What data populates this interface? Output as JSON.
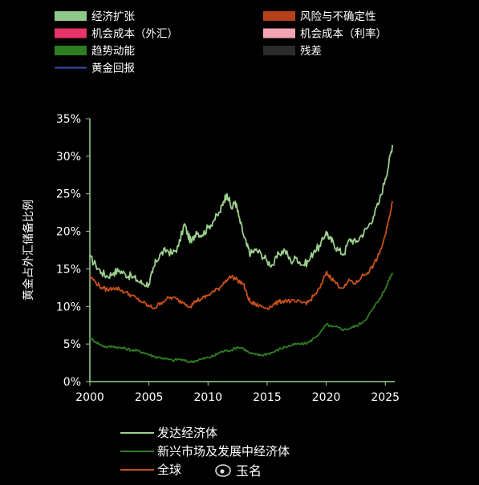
{
  "top_legend": [
    {
      "label": "经济扩张",
      "color": "#8fc98a"
    },
    {
      "label": "风险与不确定性",
      "color": "#b5401a"
    },
    {
      "label": "机会成本（外汇）",
      "color": "#e8346a"
    },
    {
      "label": "机会成本（利率）",
      "color": "#f3a3b3"
    },
    {
      "label": "趋势动能",
      "color": "#2f7d22"
    },
    {
      "label": "残差",
      "color": "#2b2b2b"
    },
    {
      "label": "黄金回报",
      "color": "#3b4fb0"
    }
  ],
  "watermark": "玉名",
  "chart_data": {
    "type": "line",
    "title": "",
    "xlabel": "",
    "ylabel": "黄金占外汇储备比例",
    "xlim": [
      2000,
      2025.8
    ],
    "ylim": [
      0,
      35
    ],
    "x_ticks": [
      "2000",
      "2005",
      "2010",
      "2015",
      "2020",
      "2025"
    ],
    "y_ticks": [
      "0%",
      "5%",
      "10%",
      "15%",
      "20%",
      "25%",
      "30%",
      "35%"
    ],
    "grid": false,
    "legend_position": "bottom-left",
    "series": [
      {
        "name": "发达经济体",
        "color": "#9dd08f",
        "x": [
          2000,
          2000.5,
          2001,
          2001.5,
          2002,
          2002.5,
          2003,
          2003.5,
          2004,
          2004.5,
          2005,
          2005.3,
          2005.6,
          2006,
          2006.5,
          2007,
          2007.5,
          2008,
          2008.3,
          2008.6,
          2009,
          2009.5,
          2010,
          2010.5,
          2011,
          2011.3,
          2011.6,
          2012,
          2012.3,
          2012.6,
          2013,
          2013.3,
          2013.6,
          2014,
          2014.5,
          2015,
          2015.5,
          2016,
          2016.5,
          2017,
          2017.5,
          2018,
          2018.5,
          2019,
          2019.5,
          2020,
          2020.3,
          2020.6,
          2021,
          2021.5,
          2022,
          2022.5,
          2023,
          2023.5,
          2024,
          2024.5,
          2025,
          2025.3,
          2025.6
        ],
        "values": [
          16.5,
          15.5,
          14.5,
          14.0,
          14.5,
          14.8,
          14.3,
          14.0,
          13.5,
          13.0,
          13.0,
          14.5,
          16.0,
          17.0,
          17.5,
          17.0,
          18.0,
          21.0,
          19.5,
          18.5,
          20.0,
          19.5,
          20.5,
          21.5,
          22.5,
          24.0,
          25.0,
          23.0,
          24.0,
          22.0,
          19.5,
          18.0,
          17.0,
          17.5,
          17.0,
          16.0,
          15.5,
          17.0,
          17.5,
          16.0,
          16.5,
          15.5,
          16.0,
          17.5,
          18.0,
          20.0,
          19.0,
          18.5,
          17.5,
          17.0,
          19.0,
          18.5,
          19.5,
          20.5,
          22.0,
          24.0,
          27.0,
          29.0,
          31.5
        ]
      },
      {
        "name": "新兴市场及发展中经济体",
        "color": "#2f7d22",
        "x": [
          2000,
          2000.5,
          2001,
          2001.5,
          2002,
          2002.5,
          2003,
          2003.5,
          2004,
          2004.5,
          2005,
          2005.5,
          2006,
          2006.5,
          2007,
          2007.5,
          2008,
          2008.5,
          2009,
          2009.5,
          2010,
          2010.5,
          2011,
          2011.5,
          2012,
          2012.5,
          2013,
          2013.5,
          2014,
          2014.5,
          2015,
          2015.5,
          2016,
          2016.5,
          2017,
          2017.5,
          2018,
          2018.5,
          2019,
          2019.5,
          2020,
          2020.5,
          2021,
          2021.5,
          2022,
          2022.5,
          2023,
          2023.5,
          2024,
          2024.5,
          2025,
          2025.3,
          2025.6
        ],
        "values": [
          5.8,
          5.3,
          4.8,
          4.6,
          4.7,
          4.5,
          4.4,
          4.2,
          4.1,
          3.9,
          3.6,
          3.3,
          3.2,
          3.0,
          2.8,
          3.0,
          2.8,
          2.6,
          2.8,
          3.0,
          3.2,
          3.4,
          3.9,
          4.1,
          4.2,
          4.6,
          4.4,
          3.8,
          3.6,
          3.5,
          3.7,
          3.9,
          4.3,
          4.6,
          4.8,
          5.0,
          5.0,
          5.2,
          5.8,
          6.5,
          7.6,
          7.3,
          7.2,
          6.9,
          7.1,
          7.4,
          7.8,
          8.6,
          9.8,
          11.0,
          12.3,
          13.5,
          14.5
        ]
      },
      {
        "name": "全球",
        "color": "#c8501c",
        "x": [
          2000,
          2000.5,
          2001,
          2001.5,
          2002,
          2002.5,
          2003,
          2003.5,
          2004,
          2004.5,
          2005,
          2005.5,
          2006,
          2006.5,
          2007,
          2007.5,
          2008,
          2008.5,
          2009,
          2009.5,
          2010,
          2010.5,
          2011,
          2011.5,
          2012,
          2012.5,
          2013,
          2013.3,
          2013.6,
          2014,
          2014.5,
          2015,
          2015.5,
          2016,
          2016.5,
          2017,
          2017.5,
          2018,
          2018.5,
          2019,
          2019.5,
          2020,
          2020.3,
          2020.6,
          2021,
          2021.5,
          2022,
          2022.5,
          2023,
          2023.5,
          2024,
          2024.5,
          2025,
          2025.3,
          2025.6
        ],
        "values": [
          14.0,
          13.2,
          12.5,
          12.2,
          12.5,
          12.3,
          11.9,
          11.5,
          11.0,
          10.5,
          10.0,
          9.8,
          10.5,
          11.0,
          11.2,
          10.8,
          10.5,
          10.0,
          10.8,
          11.0,
          11.5,
          12.0,
          12.5,
          13.5,
          14.0,
          13.5,
          13.0,
          11.5,
          10.5,
          10.3,
          10.0,
          9.8,
          10.2,
          10.6,
          10.8,
          10.7,
          10.6,
          10.5,
          10.6,
          11.5,
          12.5,
          14.5,
          14.0,
          13.5,
          12.8,
          12.5,
          13.5,
          13.0,
          14.0,
          14.5,
          15.5,
          17.0,
          19.5,
          21.5,
          24.0
        ]
      }
    ]
  }
}
